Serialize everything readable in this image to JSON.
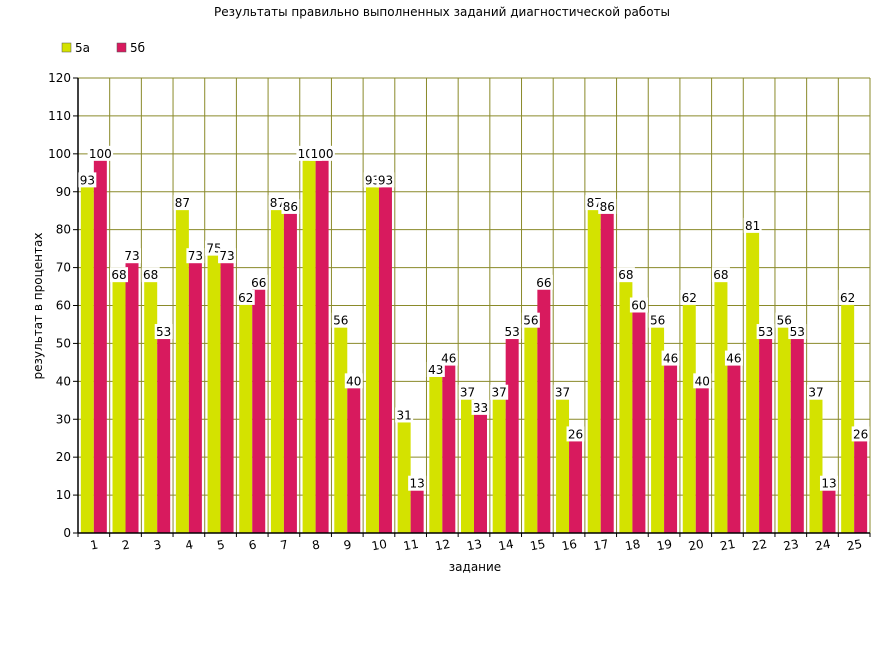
{
  "chart_data": {
    "type": "bar",
    "title": "Результаты правильно выполненных заданий диагностической работы",
    "xlabel": "задание",
    "ylabel": "результат в процентах",
    "ylim": [
      0,
      120
    ],
    "ytick_step": 10,
    "grid": true,
    "legend_position": "top-left",
    "categories": [
      "1",
      "2",
      "3",
      "4",
      "5",
      "6",
      "7",
      "8",
      "9",
      "10",
      "11",
      "12",
      "13",
      "14",
      "15",
      "16",
      "17",
      "18",
      "19",
      "20",
      "21",
      "22",
      "23",
      "24",
      "25"
    ],
    "series": [
      {
        "name": "5а",
        "color": "#d4e200",
        "values": [
          93,
          68,
          68,
          87,
          75,
          62,
          87,
          100,
          56,
          93,
          31,
          43,
          37,
          37,
          56,
          37,
          87,
          68,
          56,
          62,
          68,
          81,
          56,
          37,
          62
        ]
      },
      {
        "name": "5б",
        "color": "#d81a5e",
        "values": [
          100,
          73,
          53,
          73,
          73,
          66,
          86,
          100,
          40,
          93,
          13,
          46,
          33,
          53,
          66,
          26,
          86,
          60,
          46,
          40,
          46,
          53,
          53,
          13,
          26
        ]
      }
    ]
  }
}
